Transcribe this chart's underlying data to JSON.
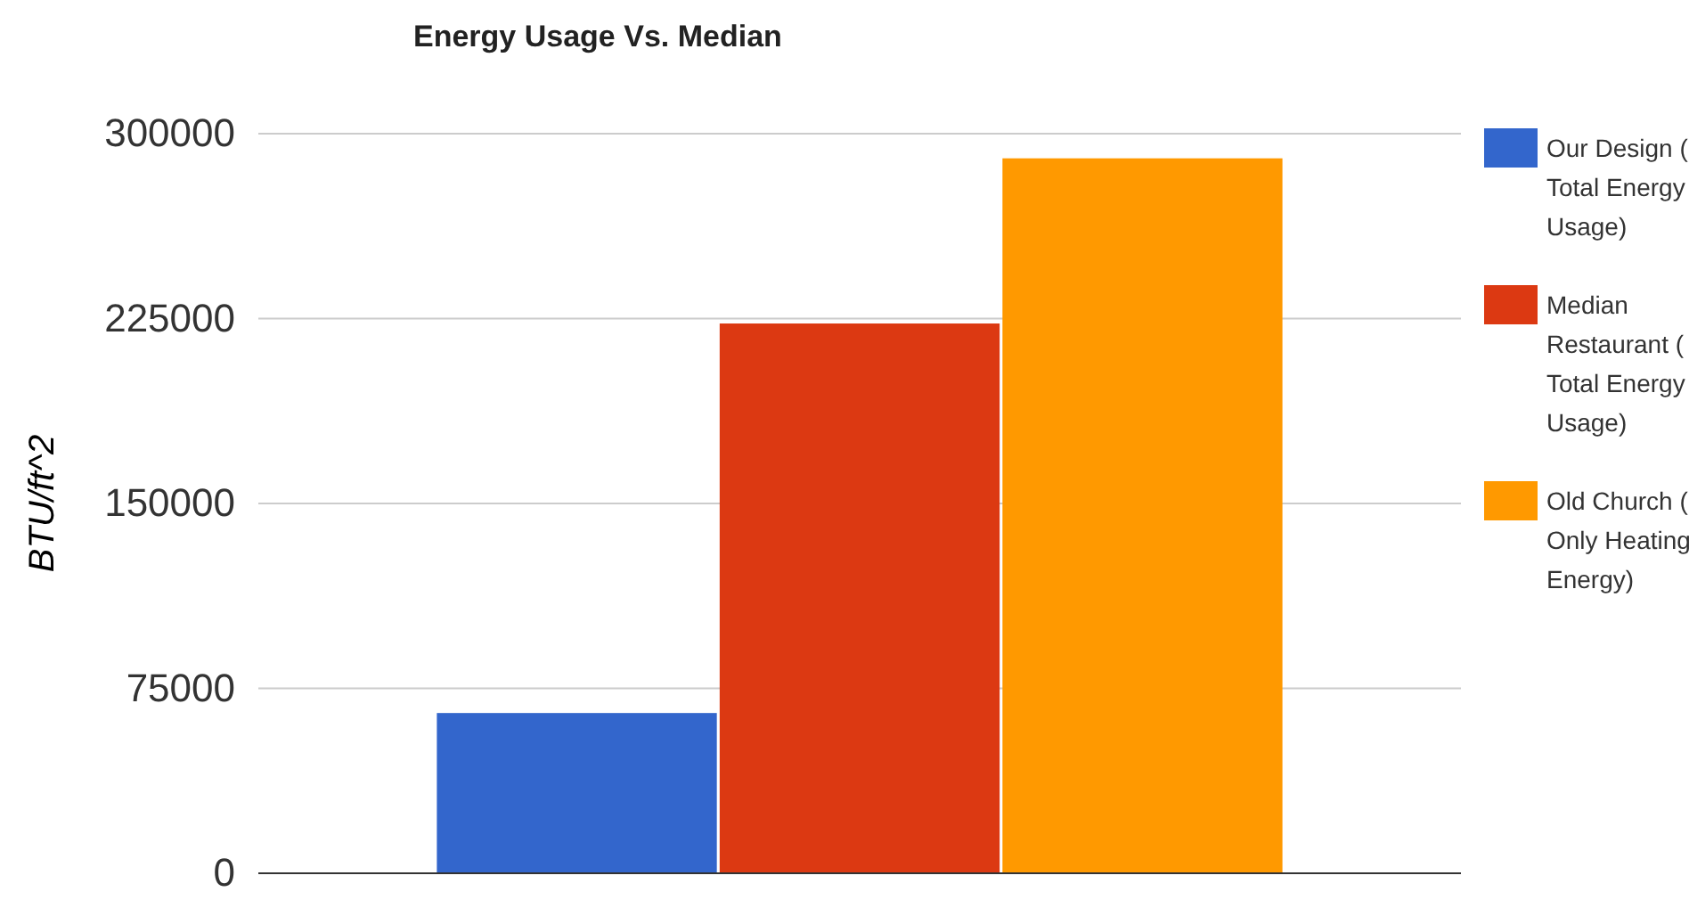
{
  "chart_data": {
    "type": "bar",
    "title": "Energy Usage Vs. Median",
    "ylabel": "BTU/ft^2",
    "categories": [
      null
    ],
    "series": [
      {
        "name": "Our Design ( Total Energy Usage)",
        "color": "#3366cc",
        "values": [
          65000
        ]
      },
      {
        "name": "Median Restaurant ( Total Energy Usage)",
        "color": "#dc3912",
        "values": [
          223000
        ]
      },
      {
        "name": "Old Church ( Only Heating Energy)",
        "color": "#ff9900",
        "values": [
          290000
        ]
      }
    ],
    "ylim": [
      0,
      300000
    ],
    "yticks": [
      0,
      75000,
      150000,
      225000,
      300000
    ],
    "grid": "y",
    "legend": "right"
  }
}
